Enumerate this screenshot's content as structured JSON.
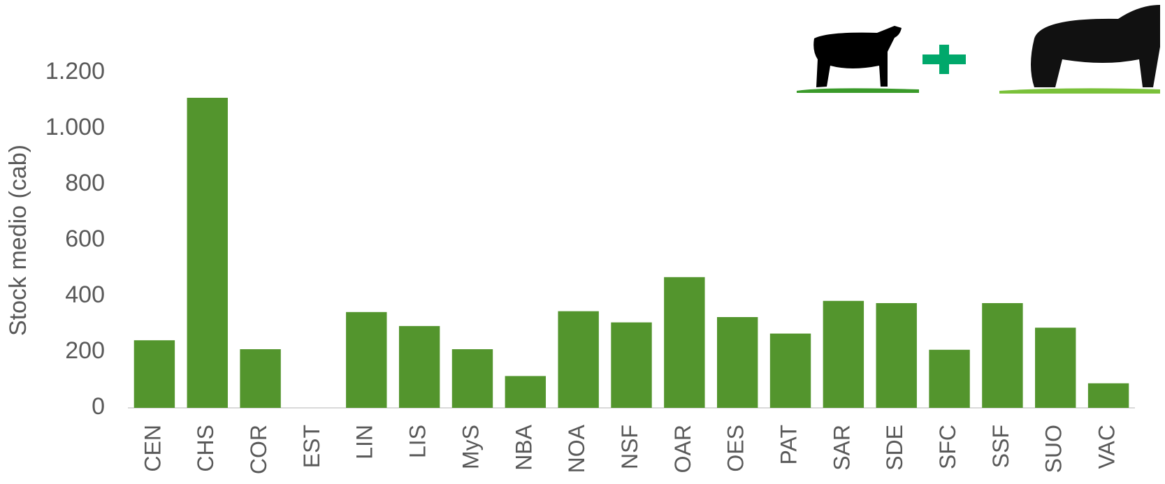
{
  "chart_data": {
    "type": "bar",
    "y_label": "Stock medio (cab)",
    "categories": [
      "CEN",
      "CHS",
      "COR",
      "EST",
      "LIN",
      "LIS",
      "MyS",
      "NBA",
      "NOA",
      "NSF",
      "OAR",
      "OES",
      "PAT",
      "SAR",
      "SDE",
      "SFC",
      "SSF",
      "SUO",
      "VAC"
    ],
    "values": [
      242,
      1110,
      210,
      0,
      343,
      293,
      210,
      114,
      346,
      306,
      468,
      325,
      266,
      383,
      375,
      208,
      375,
      287,
      88
    ],
    "color": "#53952d",
    "ylim": [
      0,
      1200
    ],
    "yticks": [
      0,
      200,
      400,
      600,
      800,
      {
        "value": 1000,
        "label": "1.000"
      },
      {
        "value": 1200,
        "label": "1.200"
      }
    ],
    "grid": false
  }
}
